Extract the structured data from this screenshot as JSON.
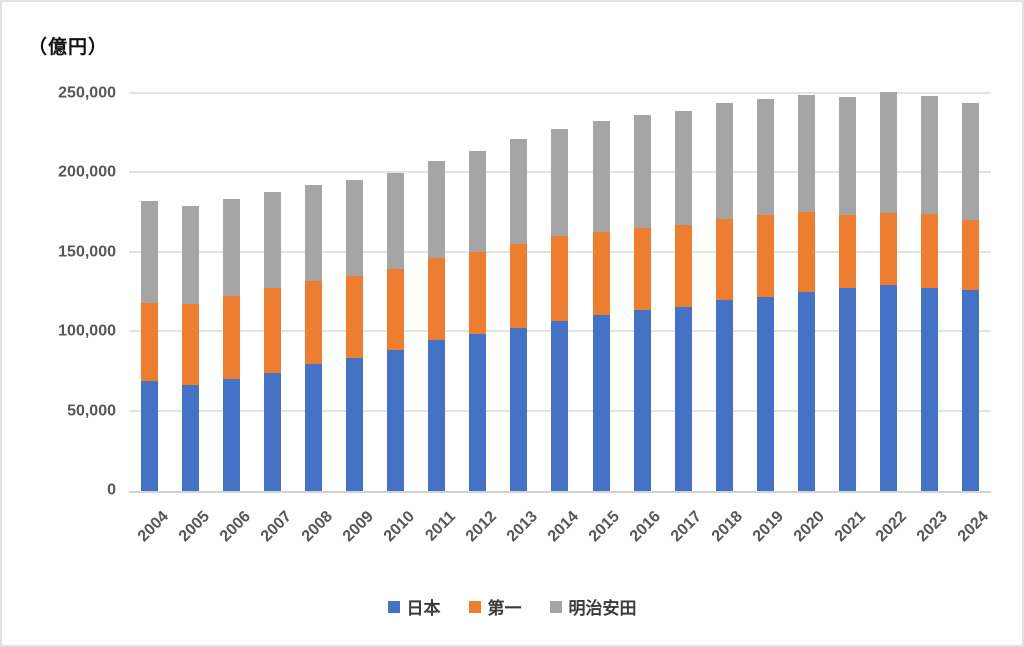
{
  "chart_data": {
    "type": "bar",
    "stacked": true,
    "title": "（億円）",
    "unit": "億円",
    "categories": [
      "2004",
      "2005",
      "2006",
      "2007",
      "2008",
      "2009",
      "2010",
      "2011",
      "2012",
      "2013",
      "2014",
      "2015",
      "2016",
      "2017",
      "2018",
      "2019",
      "2020",
      "2021",
      "2022",
      "2023",
      "2024"
    ],
    "series": [
      {
        "name": "日本",
        "key": "nippon",
        "color": "#4472C4",
        "values": [
          69500,
          67000,
          70500,
          74500,
          80000,
          83500,
          89000,
          95000,
          99000,
          102500,
          107000,
          111000,
          114000,
          116000,
          120000,
          122000,
          125000,
          127500,
          130000,
          128000,
          126500
        ]
      },
      {
        "name": "第一",
        "key": "daiichi",
        "color": "#ED7D31",
        "values": [
          49000,
          50500,
          52000,
          53500,
          52500,
          52000,
          51000,
          52000,
          51500,
          53000,
          53500,
          52000,
          51500,
          51500,
          51000,
          51500,
          50500,
          46500,
          45000,
          46500,
          44000
        ]
      },
      {
        "name": "明治安田",
        "key": "meiji-yasuda",
        "color": "#A5A5A5",
        "values": [
          64000,
          62000,
          61500,
          60000,
          60000,
          60500,
          60500,
          61000,
          63500,
          66000,
          67500,
          70000,
          71000,
          72000,
          73000,
          73000,
          74000,
          74000,
          76000,
          74500,
          73500
        ]
      }
    ],
    "totals": [
      182500,
      179500,
      184000,
      188000,
      192500,
      196000,
      200500,
      208000,
      214000,
      221500,
      228000,
      233000,
      236500,
      239500,
      244000,
      246500,
      249500,
      248000,
      251000,
      249000,
      244000
    ],
    "ylim": [
      0,
      260000
    ],
    "ytick_interval": 50000,
    "ytick_labels": [
      "0",
      "50,000",
      "100,000",
      "150,000",
      "200,000",
      "250,000"
    ],
    "grid": "horizontal",
    "legend_position": "bottom"
  }
}
